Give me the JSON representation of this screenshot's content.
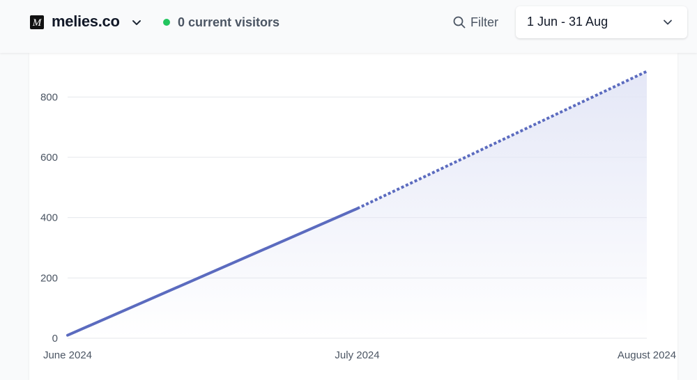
{
  "header": {
    "site_name": "melies.co",
    "logo_letter": "M",
    "visitors_label": "0 current visitors",
    "filter_label": "Filter",
    "date_range": "1 Jun - 31 Aug",
    "icons": {
      "logo": "site-logo-icon",
      "site_switcher": "chevron-down-icon",
      "status": "live-dot-icon",
      "filter": "search-icon",
      "date": "chevron-down-icon"
    }
  },
  "colors": {
    "line": "#5b6bbf",
    "area_top": "#e3e6f6",
    "grid": "#e5e7eb",
    "live_dot": "#22c55e"
  },
  "chart_data": {
    "type": "line",
    "x": [
      "June 2024",
      "July 2024",
      "August 2024"
    ],
    "x_tick_labels": [
      "June 2024",
      "July 2024",
      "August 2024"
    ],
    "series": [
      {
        "values": [
          10,
          430,
          885
        ],
        "style_by_segment": [
          "solid",
          "dotted"
        ]
      }
    ],
    "y_ticks": [
      0,
      200,
      400,
      600,
      800
    ],
    "ylim": [
      0,
      900
    ],
    "area_fill": true,
    "grid": "horizontal",
    "title": "",
    "xlabel": "",
    "ylabel": ""
  }
}
